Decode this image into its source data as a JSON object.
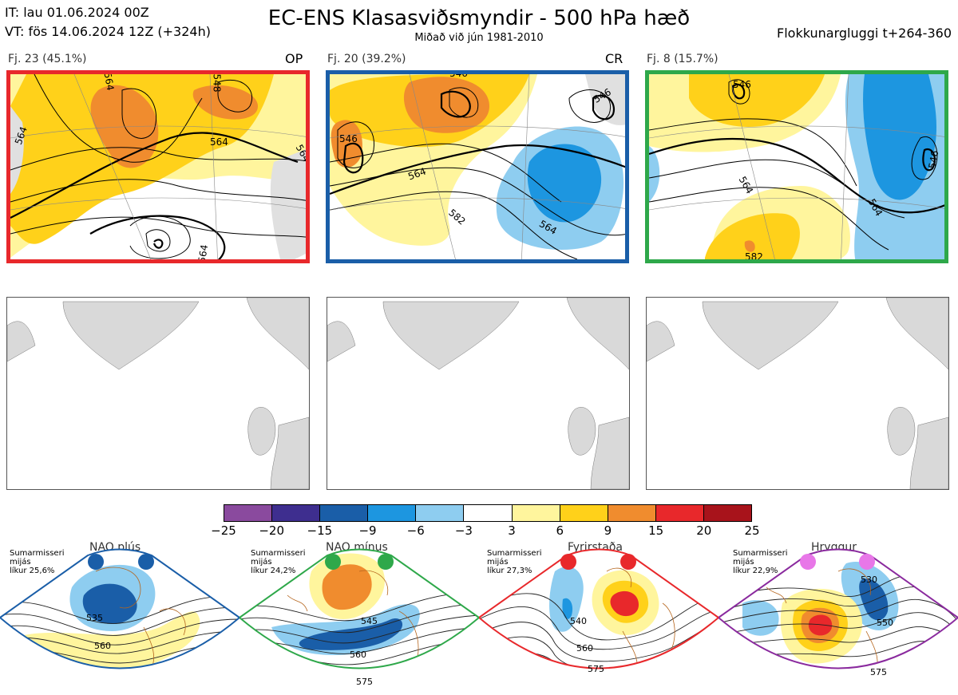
{
  "header": {
    "it": "IT: lau 01.06.2024 00Z",
    "vt": "VT: fös 14.06.2024 12Z  (+324h)",
    "title": "EC-ENS Klasasviðsmyndir - 500 hPa hæð",
    "subtitle": "Miðað við jún 1981-2010",
    "window": "Flokkunargluggi t+264-360"
  },
  "clusters": [
    {
      "label": "Fj. 23 (45.1%)",
      "tag": "OP",
      "border_color": "#e8282b",
      "contour_labels": [
        "564",
        "548",
        "564",
        "564",
        "564",
        "564"
      ]
    },
    {
      "label": "Fj. 20 (39.2%)",
      "tag": "CR",
      "border_color": "#1a5ea8",
      "contour_labels": [
        "546",
        "546",
        "564",
        "582",
        "564",
        "546"
      ]
    },
    {
      "label": "Fj. 8 (15.7%)",
      "tag": "",
      "border_color": "#2ea84a",
      "contour_labels": [
        "546",
        "564",
        "564",
        "582",
        "546"
      ]
    }
  ],
  "colorbar": {
    "colors": [
      "#8a4a9e",
      "#3e2e8f",
      "#1a5ea8",
      "#1d96e0",
      "#8ecdf0",
      "#ffffff",
      "#fff59d",
      "#ffd11a",
      "#f08c2e",
      "#e8282b",
      "#a8131b"
    ],
    "ticks": [
      "−25",
      "−20",
      "−15",
      "−9",
      "−6",
      "−3",
      "3",
      "6",
      "9",
      "15",
      "20",
      "25"
    ]
  },
  "regimes": [
    {
      "name": "NAO plús",
      "note": [
        "Sumarmisseri",
        "mijás",
        "líkur 25,6%"
      ],
      "dot_color": "#1a5ea8",
      "border_color": "#1a5ea8",
      "labels": [
        "535",
        "560"
      ]
    },
    {
      "name": "NAO mínus",
      "note": [
        "Sumarmisseri",
        "mijás",
        "líkur 24,2%"
      ],
      "dot_color": "#2ea84a",
      "border_color": "#2ea84a",
      "labels": [
        "545",
        "560",
        "575"
      ]
    },
    {
      "name": "Fyrirstaða",
      "note": [
        "Sumarmisseri",
        "mijás",
        "líkur 27,3%"
      ],
      "dot_color": "#e8282b",
      "border_color": "#e8282b",
      "labels": [
        "540",
        "560",
        "575"
      ]
    },
    {
      "name": "Hryggur",
      "note": [
        "Sumarmisseri",
        "mijás",
        "líkur 22,9%"
      ],
      "dot_color": "#e877e8",
      "border_color": "#8a2a9e",
      "labels": [
        "530",
        "550",
        "575"
      ]
    }
  ]
}
